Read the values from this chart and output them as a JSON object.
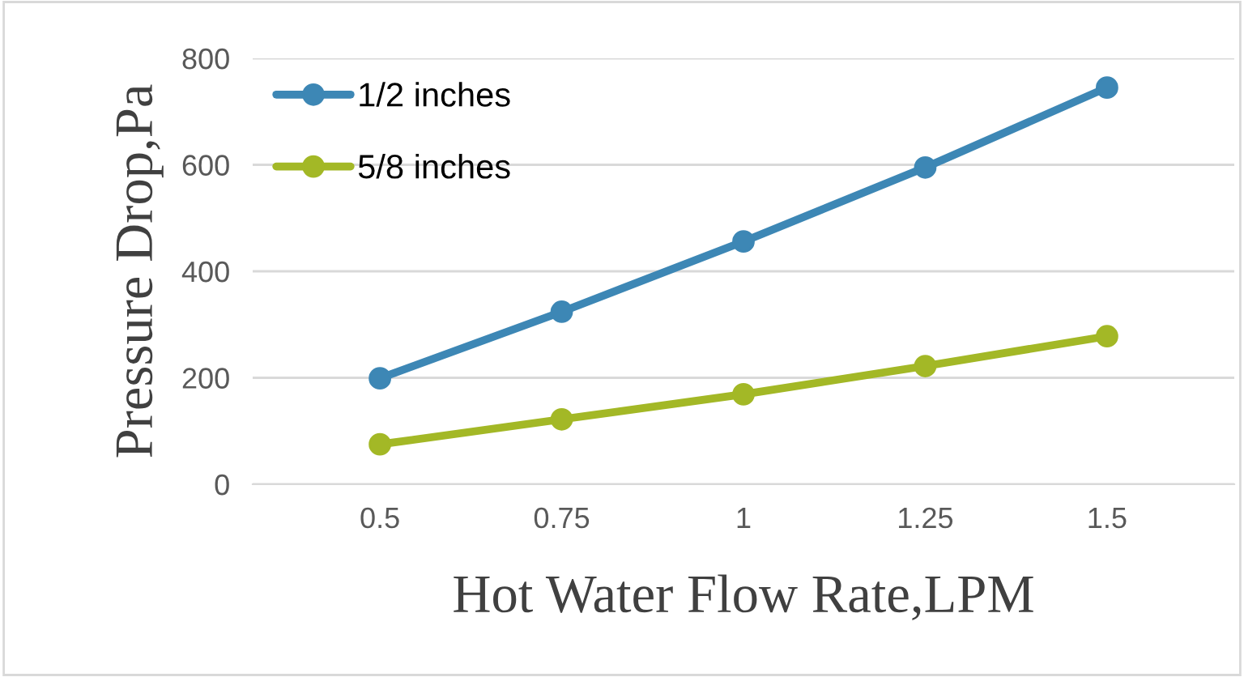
{
  "chart_data": {
    "type": "line",
    "xlabel": "Hot Water Flow Rate,LPM",
    "ylabel": "Pressure Drop,Pa",
    "categories": [
      "0.5",
      "0.75",
      "1",
      "1.25",
      "1.5"
    ],
    "series": [
      {
        "name": "1/2 inches",
        "color": "#3d87b5",
        "values": [
          199,
          324,
          456,
          595,
          745
        ]
      },
      {
        "name": "5/8 inches",
        "color": "#a3b826",
        "values": [
          75,
          122,
          169,
          222,
          278
        ]
      }
    ],
    "ylim": [
      0,
      800
    ],
    "yticks": [
      0,
      200,
      400,
      600,
      800
    ],
    "grid": "y",
    "legend": "top left",
    "marker": "circle",
    "line_style": "solid"
  }
}
